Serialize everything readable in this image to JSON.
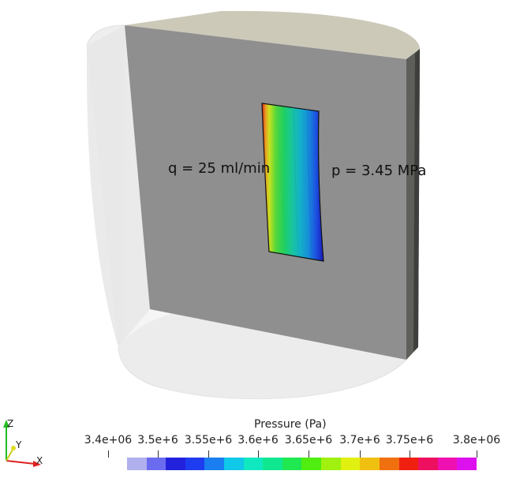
{
  "annotations": {
    "flow_rate": "q = 25 ml/min",
    "pressure": "p = 3.45 MPa"
  },
  "colorbar": {
    "title": "Pressure (Pa)",
    "range": [
      3400000,
      3800000
    ],
    "ticks": [
      {
        "value": 3400000,
        "label": "3.4e+06"
      },
      {
        "value": 3500000,
        "label": "3.5e+6"
      },
      {
        "value": 3550000,
        "label": "3.55e+6"
      },
      {
        "value": 3600000,
        "label": "3.6e+6"
      },
      {
        "value": 3650000,
        "label": "3.65e+6"
      },
      {
        "value": 3700000,
        "label": "3.7e+6"
      },
      {
        "value": 3750000,
        "label": "3.75e+6"
      },
      {
        "value": 3800000,
        "label": "3.8e+06"
      }
    ],
    "colors": [
      "#b0b0ee",
      "#6b6bf0",
      "#2222dd",
      "#1e3cf0",
      "#1a7ef0",
      "#10c8e8",
      "#10e8c0",
      "#10e890",
      "#20e850",
      "#50ee10",
      "#a0f010",
      "#e0f010",
      "#f0c010",
      "#f07010",
      "#f02010",
      "#ee1060",
      "#ee10b0",
      "#dd10ee"
    ]
  },
  "axes_triad": {
    "x": "X",
    "y": "Y",
    "z": "Z"
  },
  "colors": {
    "slab_face": "#8f8f8f",
    "slab_top": "#cdc9b9",
    "slab_side": "#5e5e5a",
    "cylinder_shell": "#e6e6e6"
  }
}
